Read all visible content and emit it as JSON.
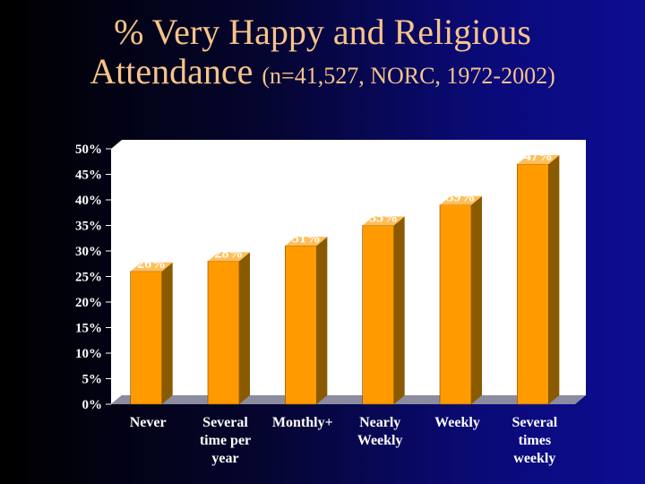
{
  "slide": {
    "title_line1": "% Very Happy and Religious",
    "title_line2_main": "Attendance",
    "title_line2_sub": "(n=41,527, NORC, 1972-2002)"
  },
  "colors": {
    "bar_front": "#ff9a00",
    "bar_side": "#8a5a00",
    "bar_top": "#ffbe5a",
    "floor": "#8c8ca0",
    "wall": "#ffffff"
  },
  "chart_data": {
    "type": "bar",
    "title": "% Very Happy and Religious Attendance (n=41,527, NORC, 1972-2002)",
    "categories": [
      [
        "Never"
      ],
      [
        "Several",
        "time per",
        "year"
      ],
      [
        "Monthly+"
      ],
      [
        "Nearly",
        "Weekly"
      ],
      [
        "Weekly"
      ],
      [
        "Several",
        "times",
        "weekly"
      ]
    ],
    "values": [
      26,
      28,
      31,
      35,
      39,
      47
    ],
    "data_labels": [
      "26%",
      "28%",
      "31%",
      "35%",
      "39%",
      "47%"
    ],
    "yticks": [
      "0%",
      "5%",
      "10%",
      "15%",
      "20%",
      "25%",
      "30%",
      "35%",
      "40%",
      "45%",
      "50%"
    ],
    "ylim": [
      0,
      50
    ],
    "xlabel": "",
    "ylabel": "",
    "grid": false,
    "legend": "none"
  }
}
